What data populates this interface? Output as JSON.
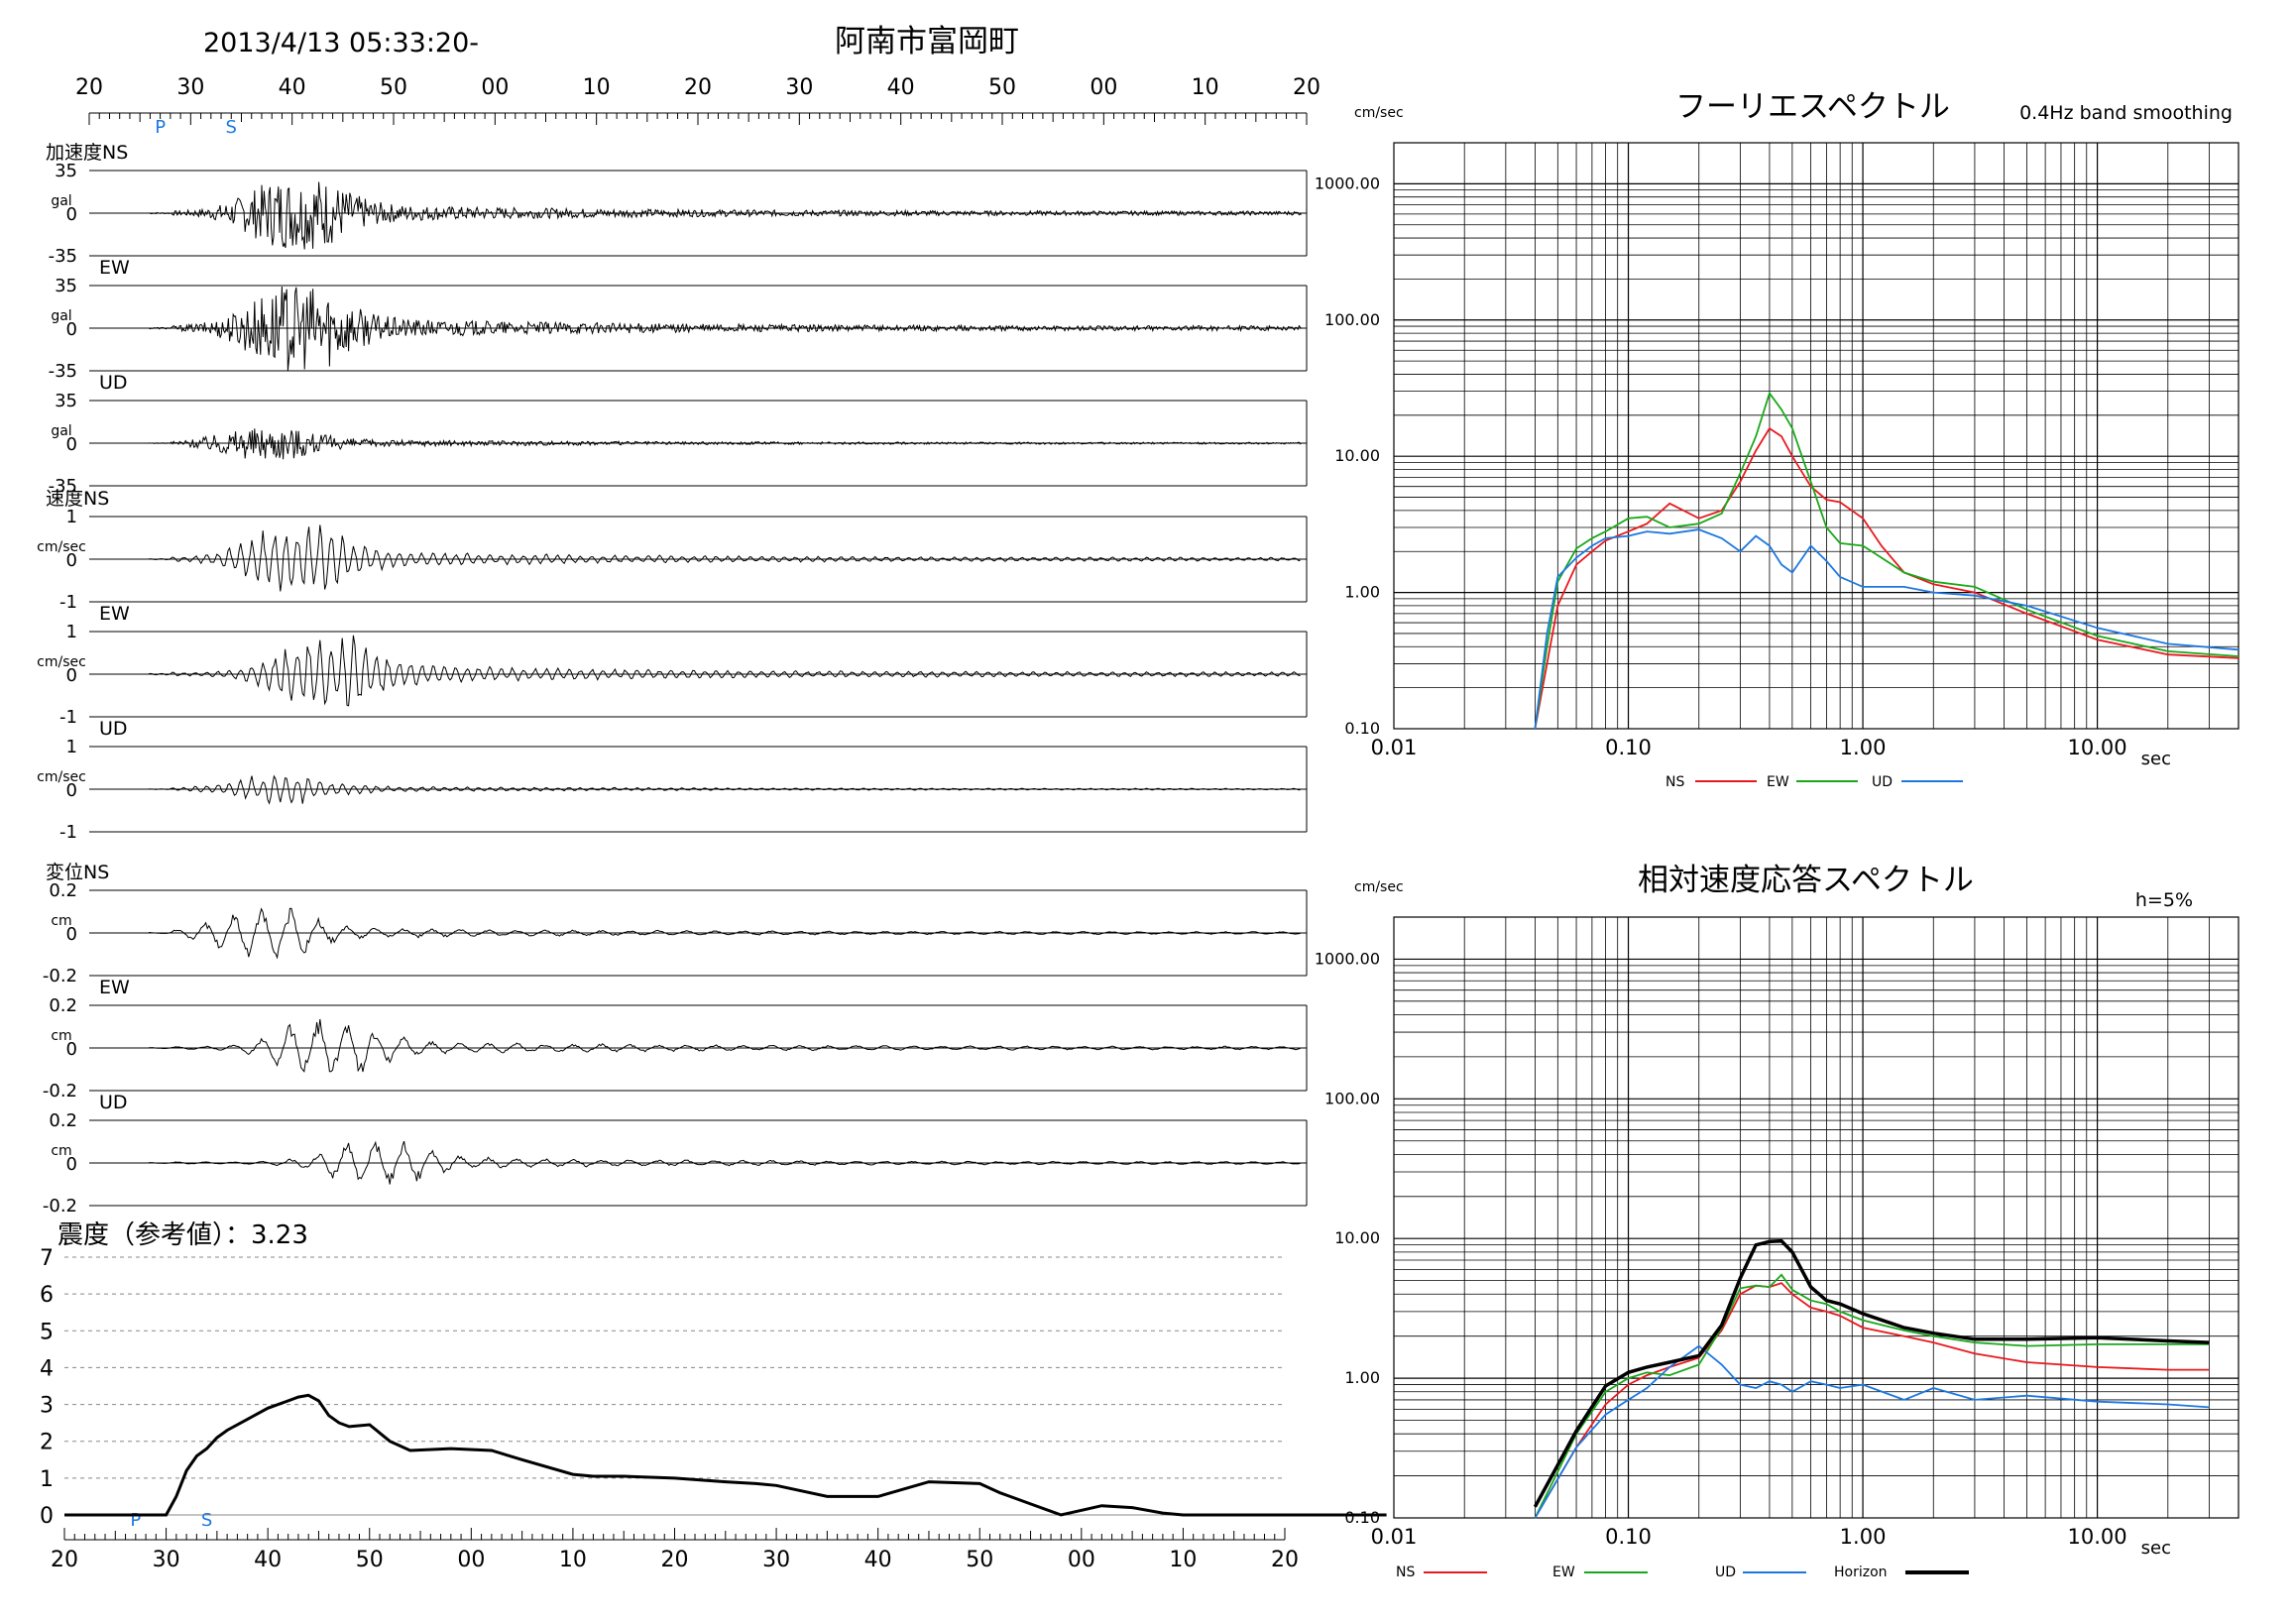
{
  "header": {
    "datetime": "2013/4/13 05:33:20-",
    "station": "阿南市富岡町"
  },
  "time_axis_labels": [
    "20",
    "30",
    "40",
    "50",
    "00",
    "10",
    "20",
    "30",
    "40",
    "50",
    "00",
    "10",
    "20"
  ],
  "phase_marks": {
    "p": "P",
    "s": "S"
  },
  "waveforms": {
    "units": {
      "acc": "gal",
      "vel": "cm/sec",
      "disp": "cm"
    },
    "groups": [
      {
        "name": "加速度",
        "scale": [
          "35",
          "0",
          "-35"
        ],
        "components": [
          "NS",
          "EW",
          "UD"
        ]
      },
      {
        "name": "速度",
        "scale": [
          "1",
          "0",
          "-1"
        ],
        "components": [
          "NS",
          "EW",
          "UD"
        ]
      },
      {
        "name": "変位",
        "scale": [
          "0.2",
          "0",
          "-0.2"
        ],
        "components": [
          "NS",
          "EW",
          "UD"
        ]
      }
    ]
  },
  "intensity": {
    "label": "震度（参考値）：3.23",
    "y_ticks": [
      "0",
      "1",
      "2",
      "3",
      "4",
      "5",
      "6",
      "7"
    ]
  },
  "colors": {
    "ns": "#e8191e",
    "ew": "#1aa81a",
    "ud": "#1c78e0",
    "horizon": "#000000",
    "phase": "#1c78e0"
  },
  "chart_data": [
    {
      "type": "line",
      "title": "震度（参考値）：3.23",
      "ylim": [
        0,
        7
      ],
      "x": [
        20,
        28,
        30,
        31,
        32,
        33,
        34,
        35,
        36,
        38,
        40,
        42,
        43,
        44,
        45,
        46,
        47,
        48,
        50,
        52,
        54,
        58,
        62,
        65,
        70,
        72,
        75,
        80,
        85,
        88,
        90,
        95,
        100,
        105,
        110,
        112,
        115,
        118,
        122,
        125,
        128,
        130,
        135,
        140,
        145,
        150
      ],
      "series": [
        {
          "values": [
            0,
            0,
            0,
            0.5,
            1.2,
            1.6,
            1.8,
            2.1,
            2.3,
            2.6,
            2.9,
            3.1,
            3.2,
            3.25,
            3.1,
            2.7,
            2.5,
            2.4,
            2.45,
            2.0,
            1.75,
            1.8,
            1.75,
            1.5,
            1.1,
            1.05,
            1.05,
            1.0,
            0.9,
            0.85,
            0.8,
            0.5,
            0.5,
            0.9,
            0.85,
            0.6,
            0.3,
            0.0,
            0.25,
            0.2,
            0.05,
            0.0,
            0.0,
            0.0,
            0.0,
            0.0
          ]
        }
      ]
    },
    {
      "type": "line",
      "title": "フーリエスペクトル",
      "subtitle": "0.4Hz band smoothing",
      "ylabel": "cm/sec",
      "xlabel": "sec",
      "xscale": "log",
      "yscale": "log",
      "xlim": [
        0.01,
        40
      ],
      "ylim": [
        0.1,
        2000
      ],
      "xticks": [
        "0.01",
        "0.10",
        "1.00",
        "10.00"
      ],
      "yticks": [
        "0.10",
        "1.00",
        "10.00",
        "100.00",
        "1000.00"
      ],
      "legend": [
        "NS",
        "EW",
        "UD"
      ],
      "x": [
        0.04,
        0.045,
        0.05,
        0.06,
        0.07,
        0.08,
        0.1,
        0.12,
        0.15,
        0.2,
        0.25,
        0.3,
        0.35,
        0.4,
        0.45,
        0.5,
        0.6,
        0.7,
        0.8,
        1.0,
        1.2,
        1.5,
        2.0,
        3.0,
        5.0,
        10.0,
        20.0,
        40.0
      ],
      "series": [
        {
          "name": "NS",
          "values": [
            0.1,
            0.3,
            0.8,
            1.6,
            2.0,
            2.4,
            2.8,
            3.2,
            4.5,
            3.5,
            4.0,
            6.5,
            11,
            16,
            14,
            10,
            6,
            4.8,
            4.6,
            3.5,
            2.2,
            1.4,
            1.15,
            1.0,
            0.7,
            0.45,
            0.35,
            0.33
          ]
        },
        {
          "name": "EW",
          "values": [
            0.1,
            0.4,
            1.2,
            2.1,
            2.5,
            2.8,
            3.5,
            3.6,
            3.0,
            3.2,
            3.8,
            7.5,
            14,
            29,
            22,
            16,
            6.5,
            3.0,
            2.3,
            2.2,
            1.8,
            1.4,
            1.2,
            1.1,
            0.75,
            0.48,
            0.37,
            0.34
          ]
        },
        {
          "name": "UD",
          "values": [
            0.1,
            0.5,
            1.3,
            1.8,
            2.2,
            2.5,
            2.6,
            2.8,
            2.7,
            2.9,
            2.5,
            2.0,
            2.6,
            2.2,
            1.6,
            1.4,
            2.2,
            1.7,
            1.3,
            1.1,
            1.1,
            1.1,
            1.0,
            0.95,
            0.8,
            0.55,
            0.42,
            0.38
          ]
        }
      ]
    },
    {
      "type": "line",
      "title": "相対速度応答スペクトル",
      "subtitle": "h=5%",
      "ylabel": "cm/sec",
      "xlabel": "sec",
      "xscale": "log",
      "yscale": "log",
      "xlim": [
        0.01,
        40
      ],
      "ylim": [
        0.1,
        2000
      ],
      "xticks": [
        "0.01",
        "0.10",
        "1.00",
        "10.00"
      ],
      "yticks": [
        "0.10",
        "1.00",
        "10.00",
        "100.00",
        "1000.00"
      ],
      "legend": [
        "NS",
        "EW",
        "UD",
        "Horizon"
      ],
      "x": [
        0.04,
        0.06,
        0.08,
        0.1,
        0.12,
        0.15,
        0.2,
        0.25,
        0.3,
        0.35,
        0.4,
        0.45,
        0.5,
        0.6,
        0.7,
        0.8,
        1.0,
        1.5,
        2.0,
        3.0,
        5.0,
        10.0,
        20.0,
        30.0
      ],
      "series": [
        {
          "name": "NS",
          "values": [
            0.1,
            0.32,
            0.65,
            0.9,
            1.05,
            1.2,
            1.4,
            2.2,
            4.0,
            4.6,
            4.5,
            4.8,
            4.0,
            3.2,
            3.0,
            2.8,
            2.3,
            2.0,
            1.8,
            1.5,
            1.3,
            1.2,
            1.15,
            1.15
          ]
        },
        {
          "name": "EW",
          "values": [
            0.1,
            0.4,
            0.8,
            1.0,
            1.1,
            1.05,
            1.25,
            2.3,
            4.4,
            4.6,
            4.5,
            5.5,
            4.3,
            3.6,
            3.4,
            3.0,
            2.6,
            2.2,
            2.0,
            1.8,
            1.7,
            1.75,
            1.75,
            1.75
          ]
        },
        {
          "name": "UD",
          "values": [
            0.1,
            0.32,
            0.55,
            0.7,
            0.85,
            1.2,
            1.7,
            1.25,
            0.9,
            0.85,
            0.95,
            0.9,
            0.8,
            0.95,
            0.9,
            0.85,
            0.9,
            0.7,
            0.85,
            0.7,
            0.75,
            0.68,
            0.65,
            0.62
          ]
        },
        {
          "name": "Horizon",
          "values": [
            0.12,
            0.42,
            0.88,
            1.1,
            1.2,
            1.3,
            1.45,
            2.4,
            5.2,
            9.0,
            9.5,
            9.6,
            8.0,
            4.5,
            3.6,
            3.4,
            2.9,
            2.3,
            2.1,
            1.9,
            1.9,
            1.95,
            1.85,
            1.8
          ]
        }
      ]
    }
  ]
}
